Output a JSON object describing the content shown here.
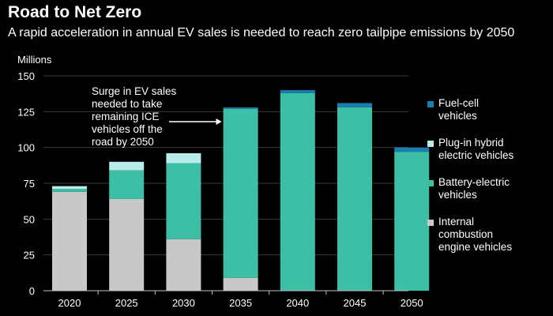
{
  "title": "Road to Net Zero",
  "subtitle": "A rapid acceleration in annual EV sales is needed to reach zero tailpipe emissions by 2050",
  "chart_data": {
    "type": "bar",
    "stacked": true,
    "ylabel": "Millions",
    "ylim": [
      0,
      150
    ],
    "yticks": [
      0,
      25,
      50,
      75,
      100,
      125,
      150
    ],
    "grid": true,
    "legend_position": "right",
    "categories": [
      "2020",
      "2025",
      "2030",
      "2035",
      "2040",
      "2045",
      "2050"
    ],
    "series": [
      {
        "name": "Internal combustion engine vehicles",
        "color": "#c8c8c8",
        "values": [
          69,
          64,
          36,
          9,
          0,
          0,
          0
        ]
      },
      {
        "name": "Battery-electric vehicles",
        "color": "#3dbfa6",
        "values": [
          2,
          20,
          53,
          118,
          138,
          128,
          97
        ]
      },
      {
        "name": "Plug-in hybrid electric vehicles",
        "color": "#b8ecec",
        "values": [
          2,
          6,
          7,
          0,
          0,
          0,
          0
        ]
      },
      {
        "name": "Fuel-cell vehicles",
        "color": "#1a7fb0",
        "values": [
          0,
          0,
          0,
          1,
          2,
          3,
          3
        ]
      }
    ],
    "annotation": {
      "text": [
        "Surge in EV sales",
        "needed to take",
        "remaining ICE",
        "vehicles off the",
        "road by 2050"
      ],
      "target_category": "2035"
    }
  },
  "legend": [
    {
      "lines": [
        "Fuel-cell",
        "vehicles"
      ],
      "color": "#1a7fb0"
    },
    {
      "lines": [
        "Plug-in hybrid",
        "electric vehicles"
      ],
      "color": "#b8ecec"
    },
    {
      "lines": [
        "Battery-electric",
        "vehicles"
      ],
      "color": "#3dbfa6"
    },
    {
      "lines": [
        "Internal",
        "combustion",
        "engine vehicles"
      ],
      "color": "#c8c8c8"
    }
  ]
}
